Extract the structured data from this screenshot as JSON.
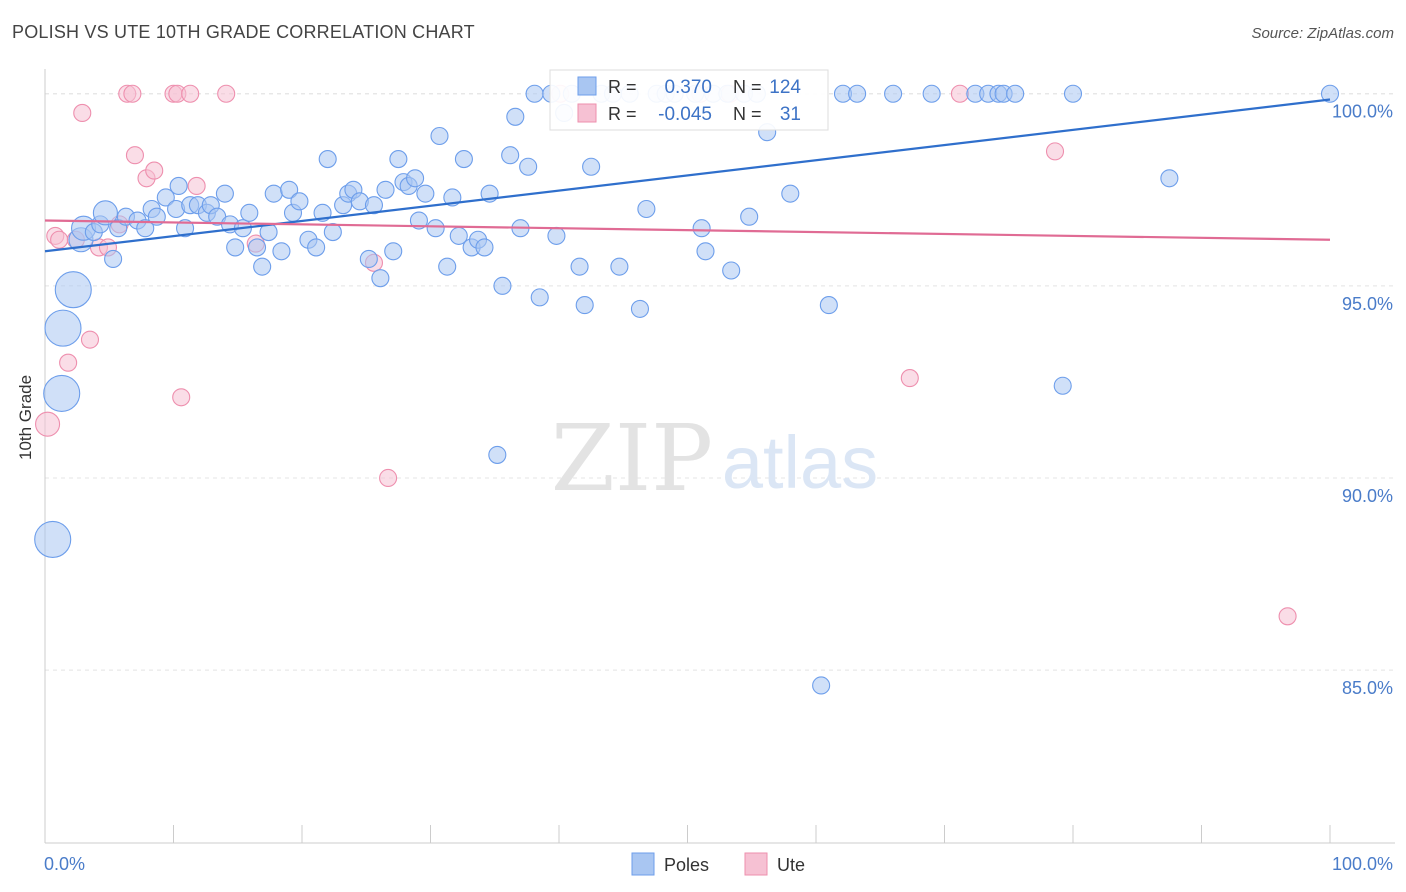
{
  "header": {
    "title": "POLISH VS UTE 10TH GRADE CORRELATION CHART",
    "source": "Source: ZipAtlas.com"
  },
  "watermark": {
    "zip": "ZIP",
    "atlas": "atlas"
  },
  "colors": {
    "poles": "#6d9eeb",
    "poles_fill": "#a9c6f2",
    "ute": "#ee8fae",
    "ute_fill": "#f6c1d3",
    "poles_line": "#2f6fcc",
    "ute_line": "#e06b94",
    "tick_text": "#4a7cc9"
  },
  "stats": {
    "poles": {
      "r_label": "R =",
      "r_value": "0.370",
      "n_label": "N =",
      "n_value": "124"
    },
    "ute": {
      "r_label": "R =",
      "r_value": "-0.045",
      "n_label": "N =",
      "n_value": "31"
    }
  },
  "chart_data": {
    "type": "scatter",
    "title": "POLISH VS UTE 10TH GRADE CORRELATION CHART",
    "xlabel": "",
    "ylabel": "10th Grade",
    "xlim": [
      0,
      100
    ],
    "ylim": [
      80.5,
      100.8
    ],
    "x_tick_labels": [
      "0.0%",
      "100.0%"
    ],
    "y_ticks": [
      85,
      90,
      95,
      100
    ],
    "y_tick_labels": [
      "85.0%",
      "90.0%",
      "95.0%",
      "100.0%"
    ],
    "grid": true,
    "legend_position": "bottom-center",
    "series": [
      {
        "name": "Poles",
        "trend": {
          "x0": 0,
          "y0": 95.9,
          "x1": 100,
          "y1": 99.85
        },
        "points": [
          [
            0.6,
            88.4,
            3
          ],
          [
            1.3,
            92.2,
            3
          ],
          [
            1.4,
            93.9,
            3
          ],
          [
            2.2,
            94.9,
            3
          ],
          [
            2.8,
            96.2,
            2
          ],
          [
            3.0,
            96.5,
            2
          ],
          [
            3.8,
            96.4,
            1
          ],
          [
            4.3,
            96.6,
            1
          ],
          [
            4.7,
            96.9,
            2
          ],
          [
            5.3,
            95.7,
            1
          ],
          [
            5.7,
            96.5,
            1
          ],
          [
            6.3,
            96.8,
            1
          ],
          [
            7.2,
            96.7,
            1
          ],
          [
            7.8,
            96.5,
            1
          ],
          [
            8.3,
            97.0,
            1
          ],
          [
            8.7,
            96.8,
            1
          ],
          [
            9.4,
            97.3,
            1
          ],
          [
            10.2,
            97.0,
            1
          ],
          [
            10.4,
            97.6,
            1
          ],
          [
            10.9,
            96.5,
            1
          ],
          [
            11.3,
            97.1,
            1
          ],
          [
            11.9,
            97.1,
            1
          ],
          [
            12.6,
            96.9,
            1
          ],
          [
            12.9,
            97.1,
            1
          ],
          [
            13.4,
            96.8,
            1
          ],
          [
            14.0,
            97.4,
            1
          ],
          [
            14.4,
            96.6,
            1
          ],
          [
            14.8,
            96.0,
            1
          ],
          [
            15.4,
            96.5,
            1
          ],
          [
            15.9,
            96.9,
            1
          ],
          [
            16.5,
            96.0,
            1
          ],
          [
            16.9,
            95.5,
            1
          ],
          [
            17.4,
            96.4,
            1
          ],
          [
            17.8,
            97.4,
            1
          ],
          [
            18.4,
            95.9,
            1
          ],
          [
            19.0,
            97.5,
            1
          ],
          [
            19.3,
            96.9,
            1
          ],
          [
            19.8,
            97.2,
            1
          ],
          [
            20.5,
            96.2,
            1
          ],
          [
            21.1,
            96.0,
            1
          ],
          [
            21.6,
            96.9,
            1
          ],
          [
            22.0,
            98.3,
            1
          ],
          [
            22.4,
            96.4,
            1
          ],
          [
            23.2,
            97.1,
            1
          ],
          [
            23.6,
            97.4,
            1
          ],
          [
            24.0,
            97.5,
            1
          ],
          [
            24.5,
            97.2,
            1
          ],
          [
            25.2,
            95.7,
            1
          ],
          [
            25.6,
            97.1,
            1
          ],
          [
            26.1,
            95.2,
            1
          ],
          [
            26.5,
            97.5,
            1
          ],
          [
            27.1,
            95.9,
            1
          ],
          [
            27.5,
            98.3,
            1
          ],
          [
            27.9,
            97.7,
            1
          ],
          [
            28.3,
            97.6,
            1
          ],
          [
            28.8,
            97.8,
            1
          ],
          [
            29.1,
            96.7,
            1
          ],
          [
            29.6,
            97.4,
            1
          ],
          [
            30.4,
            96.5,
            1
          ],
          [
            30.7,
            98.9,
            1
          ],
          [
            31.3,
            95.5,
            1
          ],
          [
            31.7,
            97.3,
            1
          ],
          [
            32.2,
            96.3,
            1
          ],
          [
            32.6,
            98.3,
            1
          ],
          [
            33.2,
            96.0,
            1
          ],
          [
            33.7,
            96.2,
            1
          ],
          [
            34.2,
            96.0,
            1
          ],
          [
            34.6,
            97.4,
            1
          ],
          [
            35.2,
            90.6,
            1
          ],
          [
            35.6,
            95.0,
            1
          ],
          [
            36.2,
            98.4,
            1
          ],
          [
            36.6,
            99.4,
            1
          ],
          [
            37.0,
            96.5,
            1
          ],
          [
            37.6,
            98.1,
            1
          ],
          [
            38.1,
            100.0,
            1
          ],
          [
            38.5,
            94.7,
            1
          ],
          [
            39.4,
            100.0,
            1
          ],
          [
            39.8,
            96.3,
            1
          ],
          [
            40.4,
            99.5,
            1
          ],
          [
            41.0,
            100.0,
            1
          ],
          [
            41.6,
            95.5,
            1
          ],
          [
            42.0,
            94.5,
            1
          ],
          [
            42.5,
            98.1,
            1
          ],
          [
            43.3,
            100.0,
            1
          ],
          [
            44.2,
            100.0,
            1
          ],
          [
            44.7,
            95.5,
            1
          ],
          [
            45.5,
            100.0,
            1
          ],
          [
            46.3,
            94.4,
            1
          ],
          [
            46.8,
            97.0,
            1
          ],
          [
            47.6,
            100.0,
            1
          ],
          [
            48.3,
            100.0,
            1
          ],
          [
            49.0,
            100.0,
            1
          ],
          [
            50.6,
            100.0,
            1
          ],
          [
            51.1,
            96.5,
            1
          ],
          [
            51.4,
            95.9,
            1
          ],
          [
            52.0,
            100.0,
            1
          ],
          [
            53.1,
            100.0,
            1
          ],
          [
            53.4,
            95.4,
            1
          ],
          [
            54.4,
            100.0,
            1
          ],
          [
            54.8,
            96.8,
            1
          ],
          [
            55.4,
            100.0,
            1
          ],
          [
            56.2,
            99.0,
            1
          ],
          [
            58.0,
            97.4,
            1
          ],
          [
            60.4,
            84.6,
            1
          ],
          [
            61.0,
            94.5,
            1
          ],
          [
            62.1,
            100.0,
            1
          ],
          [
            63.2,
            100.0,
            1
          ],
          [
            66.0,
            100.0,
            1
          ],
          [
            69.0,
            100.0,
            1
          ],
          [
            72.4,
            100.0,
            1
          ],
          [
            73.4,
            100.0,
            1
          ],
          [
            74.2,
            100.0,
            1
          ],
          [
            74.6,
            100.0,
            1
          ],
          [
            75.5,
            100.0,
            1
          ],
          [
            79.2,
            92.4,
            1
          ],
          [
            80.0,
            100.0,
            1
          ],
          [
            87.5,
            97.8,
            1
          ],
          [
            100.0,
            100.0,
            1
          ]
        ]
      },
      {
        "name": "Ute",
        "trend": {
          "x0": 0,
          "y0": 96.7,
          "x1": 100,
          "y1": 96.2
        },
        "points": [
          [
            0.2,
            91.4,
            2
          ],
          [
            0.8,
            96.3,
            1
          ],
          [
            1.1,
            96.2,
            1
          ],
          [
            1.8,
            93.0,
            1
          ],
          [
            2.4,
            96.2,
            1
          ],
          [
            2.9,
            99.5,
            1
          ],
          [
            3.5,
            93.6,
            1
          ],
          [
            4.2,
            96.0,
            1
          ],
          [
            4.9,
            96.0,
            1
          ],
          [
            5.8,
            96.6,
            1
          ],
          [
            6.4,
            100.0,
            1
          ],
          [
            6.8,
            100.0,
            1
          ],
          [
            7.0,
            98.4,
            1
          ],
          [
            7.9,
            97.8,
            1
          ],
          [
            8.5,
            98.0,
            1
          ],
          [
            10.0,
            100.0,
            1
          ],
          [
            10.3,
            100.0,
            1
          ],
          [
            10.6,
            92.1,
            1
          ],
          [
            11.3,
            100.0,
            1
          ],
          [
            11.8,
            97.6,
            1
          ],
          [
            14.1,
            100.0,
            1
          ],
          [
            16.4,
            96.1,
            1
          ],
          [
            25.6,
            95.6,
            1
          ],
          [
            26.7,
            90.0,
            1
          ],
          [
            40.1,
            100.0,
            1
          ],
          [
            51.0,
            100.0,
            1
          ],
          [
            53.3,
            100.0,
            1
          ],
          [
            67.3,
            92.6,
            1
          ],
          [
            71.2,
            100.0,
            1
          ],
          [
            78.6,
            98.5,
            1
          ],
          [
            96.7,
            86.4,
            1
          ]
        ]
      }
    ]
  }
}
